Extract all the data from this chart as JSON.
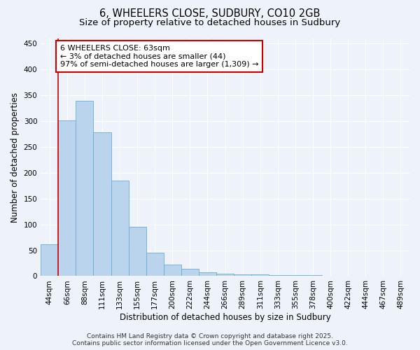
{
  "title_line1": "6, WHEELERS CLOSE, SUDBURY, CO10 2GB",
  "title_line2": "Size of property relative to detached houses in Sudbury",
  "xlabel": "Distribution of detached houses by size in Sudbury",
  "ylabel": "Number of detached properties",
  "categories": [
    "44sqm",
    "66sqm",
    "88sqm",
    "111sqm",
    "133sqm",
    "155sqm",
    "177sqm",
    "200sqm",
    "222sqm",
    "244sqm",
    "266sqm",
    "289sqm",
    "311sqm",
    "333sqm",
    "355sqm",
    "378sqm",
    "400sqm",
    "422sqm",
    "444sqm",
    "467sqm",
    "489sqm"
  ],
  "values": [
    62,
    301,
    340,
    278,
    185,
    95,
    46,
    22,
    14,
    8,
    5,
    4,
    3,
    2,
    2,
    2,
    1,
    0,
    0,
    1,
    1
  ],
  "bar_color": "#bad4ed",
  "bar_edge_color": "#6aaed6",
  "marker_color": "#cc0000",
  "annotation_line1": "6 WHEELERS CLOSE: 63sqm",
  "annotation_line2": "← 3% of detached houses are smaller (44)",
  "annotation_line3": "97% of semi-detached houses are larger (1,309) →",
  "annotation_box_facecolor": "#ffffff",
  "annotation_box_edgecolor": "#cc0000",
  "ylim": [
    0,
    460
  ],
  "yticks": [
    0,
    50,
    100,
    150,
    200,
    250,
    300,
    350,
    400,
    450
  ],
  "background_color": "#eef2fa",
  "grid_color": "#ffffff",
  "footer_line1": "Contains HM Land Registry data © Crown copyright and database right 2025.",
  "footer_line2": "Contains public sector information licensed under the Open Government Licence v3.0.",
  "title_fontsize": 10.5,
  "subtitle_fontsize": 9.5,
  "axis_label_fontsize": 8.5,
  "tick_fontsize": 7.5,
  "annotation_fontsize": 8,
  "footer_fontsize": 6.5
}
